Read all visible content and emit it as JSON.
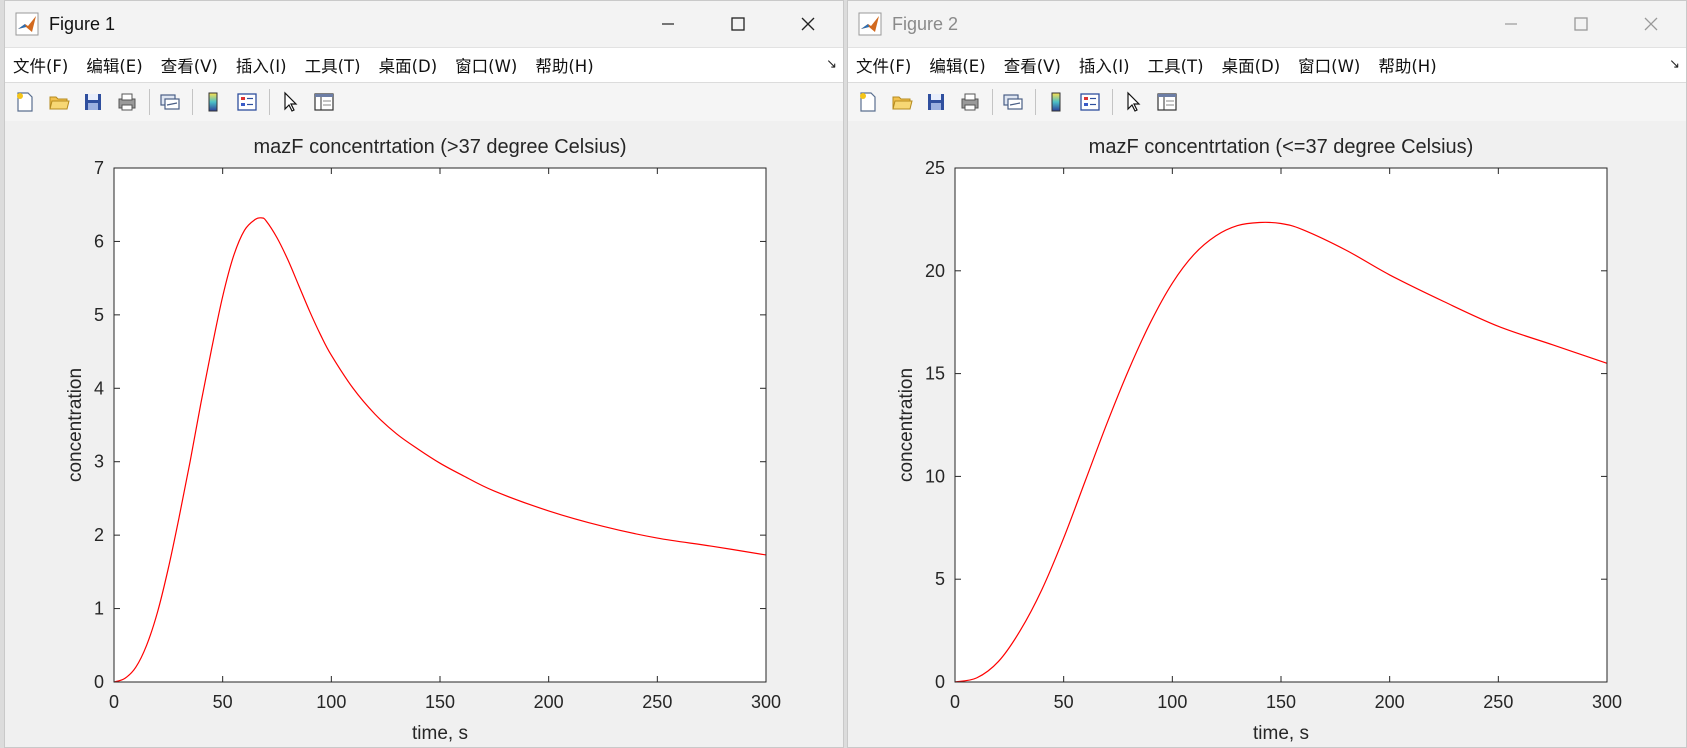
{
  "menu_labels": [
    "文件(F)",
    "编辑(E)",
    "查看(V)",
    "插入(I)",
    "工具(T)",
    "桌面(D)",
    "窗口(W)",
    "帮助(H)"
  ],
  "menu_arrow": "↘",
  "toolbar_icons": [
    "new-figure-icon",
    "open-file-icon",
    "save-icon",
    "print-icon",
    "link-plot-icon",
    "insert-colorbar-icon",
    "insert-legend-icon",
    "edit-plot-pointer-icon",
    "property-inspector-icon"
  ],
  "colors": {
    "curve": "#ff0000",
    "axes": "#262626",
    "window_bg": "#f0f0f0",
    "plot_bg": "#ffffff"
  },
  "figure1": {
    "title": "Figure 1",
    "active": true
  },
  "figure2": {
    "title": "Figure 2",
    "active": false
  },
  "chart_data": [
    {
      "type": "line",
      "title": "mazF concentrtation (>37 degree Celsius)",
      "xlabel": "time, s",
      "ylabel": "concentration",
      "xlim": [
        0,
        300
      ],
      "ylim": [
        0,
        7
      ],
      "xticks": [
        0,
        50,
        100,
        150,
        200,
        250,
        300
      ],
      "yticks": [
        0,
        1,
        2,
        3,
        4,
        5,
        6,
        7
      ],
      "grid": false,
      "series": [
        {
          "x": [
            0,
            5,
            10,
            15,
            20,
            25,
            30,
            35,
            40,
            45,
            50,
            55,
            60,
            65,
            68,
            70,
            75,
            80,
            85,
            90,
            95,
            100,
            110,
            120,
            130,
            140,
            150,
            160,
            175,
            200,
            225,
            250,
            275,
            300
          ],
          "y": [
            0,
            0.05,
            0.2,
            0.5,
            0.95,
            1.55,
            2.25,
            3.0,
            3.8,
            4.55,
            5.25,
            5.8,
            6.15,
            6.3,
            6.32,
            6.28,
            6.05,
            5.75,
            5.4,
            5.05,
            4.73,
            4.45,
            4.0,
            3.65,
            3.38,
            3.17,
            2.98,
            2.82,
            2.6,
            2.33,
            2.12,
            1.96,
            1.85,
            1.73
          ]
        }
      ]
    },
    {
      "type": "line",
      "title": "mazF concentrtation (<=37 degree Celsius)",
      "xlabel": "time, s",
      "ylabel": "concentration",
      "xlim": [
        0,
        300
      ],
      "ylim": [
        0,
        25
      ],
      "xticks": [
        0,
        50,
        100,
        150,
        200,
        250,
        300
      ],
      "yticks": [
        0,
        5,
        10,
        15,
        20,
        25
      ],
      "grid": false,
      "series": [
        {
          "x": [
            0,
            10,
            20,
            30,
            40,
            50,
            60,
            70,
            80,
            90,
            100,
            110,
            120,
            130,
            140,
            150,
            160,
            180,
            200,
            225,
            250,
            275,
            300
          ],
          "y": [
            0,
            0.2,
            1.0,
            2.5,
            4.5,
            7.0,
            9.8,
            12.6,
            15.2,
            17.5,
            19.4,
            20.8,
            21.7,
            22.2,
            22.35,
            22.3,
            22.0,
            21.0,
            19.8,
            18.5,
            17.3,
            16.4,
            15.5
          ]
        }
      ]
    }
  ]
}
